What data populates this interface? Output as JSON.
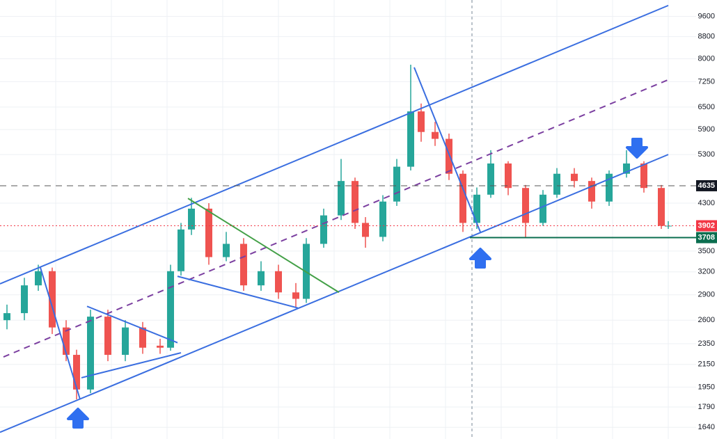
{
  "chart_data": {
    "type": "candlestick",
    "log_scale": true,
    "grid": true,
    "xlim": [
      0,
      100
    ],
    "ylim": [
      1560,
      10300
    ],
    "yticks": [
      1640,
      1790,
      1950,
      2150,
      2350,
      2600,
      2900,
      3200,
      3500,
      4300,
      5300,
      5900,
      6500,
      7250,
      8000,
      8800,
      9600
    ],
    "up_color": "#26a69a",
    "down_color": "#ef5350",
    "x": [
      1,
      3.5,
      5.5,
      7.5,
      9.5,
      11,
      13,
      15.5,
      18,
      20.5,
      23,
      24.5,
      26,
      27.5,
      30,
      32.5,
      35,
      37.5,
      40,
      42.5,
      44,
      46.5,
      49,
      51,
      52.5,
      55,
      57,
      59,
      60.5,
      62.5,
      64.5,
      66.5,
      68.5,
      70.5,
      73,
      75.5,
      78,
      80,
      82.5,
      85,
      87.5,
      90,
      92.5,
      95,
      96
    ],
    "open": [
      2600,
      2680,
      3020,
      3210,
      2520,
      2240,
      1930,
      2640,
      2240,
      2520,
      2330,
      2310,
      3210,
      3840,
      4200,
      3410,
      3610,
      3020,
      3210,
      2930,
      2850,
      3610,
      4080,
      4730,
      3950,
      3720,
      4330,
      5030,
      6380,
      5840,
      5670,
      4880,
      3950,
      4460,
      5100,
      4590,
      3950,
      4460,
      4880,
      4730,
      4330,
      4880,
      5100,
      4590,
      3900
    ],
    "high": [
      2780,
      3120,
      3300,
      3260,
      2600,
      2290,
      2720,
      2720,
      2600,
      2580,
      2400,
      3300,
      3950,
      4400,
      4300,
      3800,
      3700,
      3350,
      3300,
      3050,
      3700,
      4200,
      5200,
      4800,
      4050,
      4450,
      5200,
      7800,
      6600,
      6100,
      5800,
      4950,
      4600,
      5400,
      5150,
      4650,
      4550,
      5000,
      5000,
      4800,
      4950,
      5400,
      5150,
      4650,
      3980
    ],
    "low": [
      2500,
      2600,
      2950,
      2450,
      2180,
      1850,
      1900,
      2180,
      2180,
      2250,
      2250,
      2280,
      3150,
      3750,
      3300,
      3350,
      2950,
      2950,
      2850,
      2750,
      2800,
      3550,
      4000,
      3850,
      3550,
      3650,
      4250,
      4950,
      5600,
      5500,
      4750,
      3800,
      3850,
      4400,
      4450,
      3700,
      3900,
      4400,
      4600,
      4200,
      4250,
      4800,
      4500,
      3850,
      3850
    ],
    "close": [
      2680,
      3020,
      3210,
      2520,
      2240,
      1930,
      2640,
      2240,
      2520,
      2310,
      2310,
      3210,
      3840,
      4200,
      3410,
      3610,
      3020,
      3210,
      2930,
      2850,
      3610,
      4080,
      4730,
      3950,
      3720,
      4330,
      5030,
      6380,
      5840,
      5670,
      4880,
      3950,
      4460,
      5100,
      4590,
      3950,
      4460,
      4880,
      4730,
      4330,
      4880,
      5100,
      4590,
      3900,
      3902
    ],
    "crosshair_x": 67.8,
    "price_labels": [
      {
        "value": 4635,
        "color": "#131722",
        "line_style": "dashed"
      },
      {
        "value": 3902,
        "color": "#f23645",
        "line_style": "dotted"
      },
      {
        "value": 3708,
        "color": "#0b6e4f",
        "line_style": "none"
      }
    ],
    "drawings": [
      {
        "color": "#3a6ee0",
        "style": "solid",
        "points": [
          [
            0,
            3040
          ],
          [
            96,
            10060
          ]
        ]
      },
      {
        "color": "#3a6ee0",
        "style": "solid",
        "points": [
          [
            0,
            1606
          ],
          [
            96,
            5300
          ]
        ]
      },
      {
        "color": "#7b3fa0",
        "style": "dashed",
        "points": [
          [
            0.5,
            2220
          ],
          [
            96,
            7310
          ]
        ]
      },
      {
        "color": "#3a6ee0",
        "style": "solid",
        "points": [
          [
            5.8,
            3260
          ],
          [
            11.5,
            1850
          ]
        ]
      },
      {
        "color": "#3a6ee0",
        "style": "solid",
        "points": [
          [
            12.5,
            2760
          ],
          [
            25.5,
            2360
          ]
        ]
      },
      {
        "color": "#3a6ee0",
        "style": "solid",
        "points": [
          [
            11.7,
            2030
          ],
          [
            26,
            2260
          ]
        ]
      },
      {
        "color": "#43a047",
        "style": "solid",
        "points": [
          [
            27,
            4390
          ],
          [
            48.7,
            2930
          ]
        ]
      },
      {
        "color": "#3a6ee0",
        "style": "solid",
        "points": [
          [
            25.5,
            3140
          ],
          [
            42.8,
            2740
          ]
        ]
      },
      {
        "color": "#3a6ee0",
        "style": "solid",
        "points": [
          [
            59.5,
            7710
          ],
          [
            69,
            3800
          ]
        ]
      },
      {
        "color": "#0b6e4f",
        "style": "solid",
        "points": [
          [
            67.5,
            3708
          ],
          [
            100,
            3708
          ]
        ]
      }
    ]
  }
}
